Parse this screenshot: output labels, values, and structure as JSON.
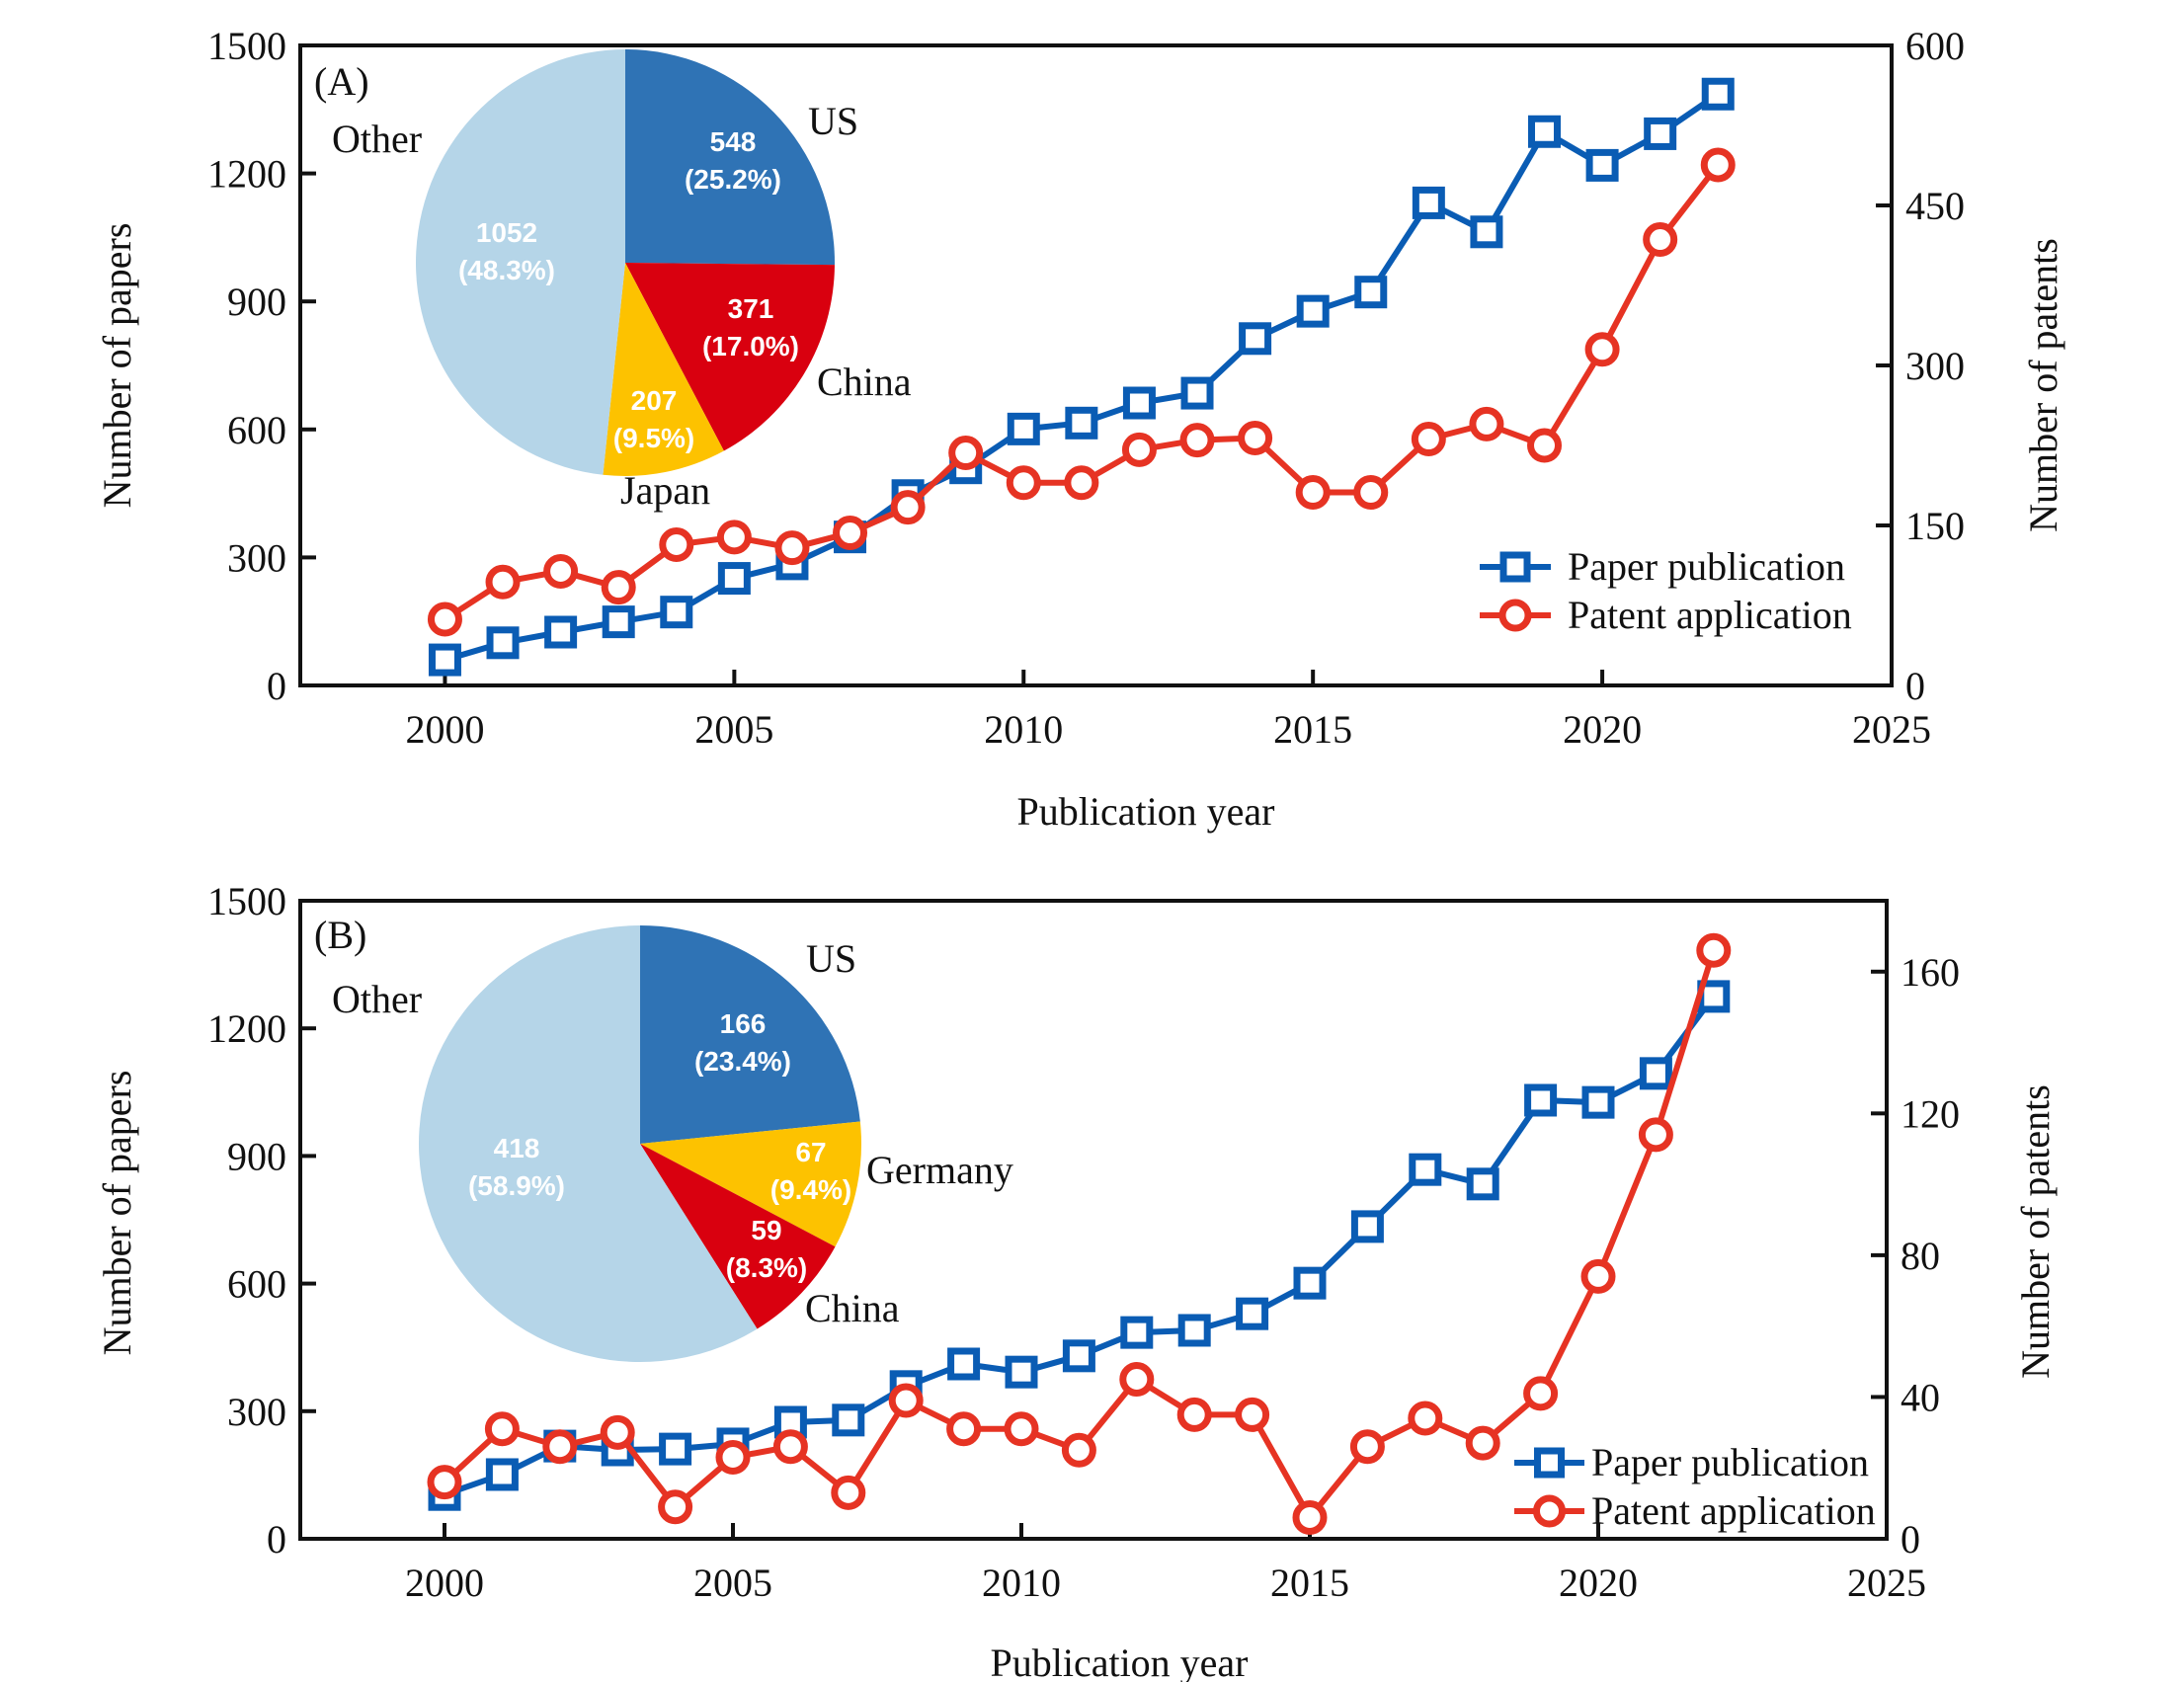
{
  "chart_data": [
    {
      "type": "line",
      "panel_label": "(A)",
      "xlabel": "Publication year",
      "ylabel": "Number of papers",
      "y2label": "Number of patents",
      "xlim": [
        1997.5,
        2025
      ],
      "ylim": [
        0,
        1500
      ],
      "y2lim": [
        0,
        600
      ],
      "xticks": [
        2000,
        2005,
        2010,
        2015,
        2020,
        2025
      ],
      "yticks": [
        0,
        300,
        600,
        900,
        1200,
        1500
      ],
      "y2ticks": [
        0,
        150,
        300,
        450,
        600
      ],
      "grid": false,
      "legend_position": "bottom-right",
      "x": [
        2000,
        2001,
        2002,
        2003,
        2004,
        2005,
        2006,
        2007,
        2008,
        2009,
        2010,
        2011,
        2012,
        2013,
        2014,
        2015,
        2016,
        2017,
        2018,
        2019,
        2020,
        2021,
        2022
      ],
      "series": [
        {
          "name": "Paper publication",
          "axis": "left",
          "marker": "square",
          "color": "#0a5cb4",
          "values": [
            60,
            100,
            125,
            149,
            172,
            251,
            285,
            348,
            445,
            510,
            601,
            615,
            662,
            685,
            813,
            877,
            922,
            1131,
            1063,
            1298,
            1219,
            1293,
            1386
          ]
        },
        {
          "name": "Patent application",
          "axis": "right",
          "marker": "circle",
          "color": "#e63323",
          "values": [
            62,
            97,
            107,
            92,
            132,
            139,
            129,
            143,
            167,
            218,
            190,
            190,
            221,
            230,
            232,
            181,
            181,
            231,
            245,
            225,
            315,
            418,
            488
          ]
        }
      ],
      "inset_pie": {
        "type": "pie",
        "slices": [
          {
            "label": "US",
            "value": 548,
            "percent_label": "(25.2%)",
            "color": "#2f73b5"
          },
          {
            "label": "China",
            "value": 371,
            "percent_label": "(17.0%)",
            "color": "#d9000f"
          },
          {
            "label": "Japan",
            "value": 207,
            "percent_label": "(9.5%)",
            "color": "#fdc200"
          },
          {
            "label": "Other",
            "value": 1052,
            "percent_label": "(48.3%)",
            "color": "#b5d5e8"
          }
        ]
      }
    },
    {
      "type": "line",
      "panel_label": "(B)",
      "xlabel": "Publication year",
      "ylabel": "Number of papers",
      "y2label": "Number of patents",
      "xlim": [
        1997.5,
        2025
      ],
      "ylim": [
        0,
        1500
      ],
      "y2lim": [
        0,
        180
      ],
      "xticks": [
        2000,
        2005,
        2010,
        2015,
        2020,
        2025
      ],
      "yticks": [
        0,
        300,
        600,
        900,
        1200,
        1500
      ],
      "y2ticks": [
        0,
        40,
        80,
        120,
        160
      ],
      "grid": false,
      "legend_position": "bottom-right",
      "x": [
        2000,
        2001,
        2002,
        2003,
        2004,
        2005,
        2006,
        2007,
        2008,
        2009,
        2010,
        2011,
        2012,
        2013,
        2014,
        2015,
        2016,
        2017,
        2018,
        2019,
        2020,
        2021,
        2022
      ],
      "series": [
        {
          "name": "Paper publication",
          "axis": "left",
          "marker": "square",
          "color": "#0a5cb4",
          "values": [
            104,
            151,
            218,
            209,
            211,
            223,
            274,
            279,
            358,
            411,
            392,
            430,
            485,
            490,
            529,
            601,
            734,
            868,
            834,
            1031,
            1026,
            1094,
            1275
          ]
        },
        {
          "name": "Patent application",
          "axis": "right",
          "marker": "circle",
          "color": "#e63323",
          "values": [
            16,
            31,
            26,
            30,
            9,
            23,
            26,
            13,
            39,
            31,
            31,
            25,
            45,
            35,
            35,
            6,
            26,
            34,
            27,
            41,
            74,
            114,
            166
          ]
        }
      ],
      "inset_pie": {
        "type": "pie",
        "slices": [
          {
            "label": "US",
            "value": 166,
            "percent_label": "(23.4%)",
            "color": "#2f73b5"
          },
          {
            "label": "Germany",
            "value": 67,
            "percent_label": "(9.4%)",
            "color": "#fdc200"
          },
          {
            "label": "China",
            "value": 59,
            "percent_label": "(8.3%)",
            "color": "#d9000f"
          },
          {
            "label": "Other",
            "value": 418,
            "percent_label": "(58.9%)",
            "color": "#b5d5e8"
          }
        ]
      }
    }
  ]
}
